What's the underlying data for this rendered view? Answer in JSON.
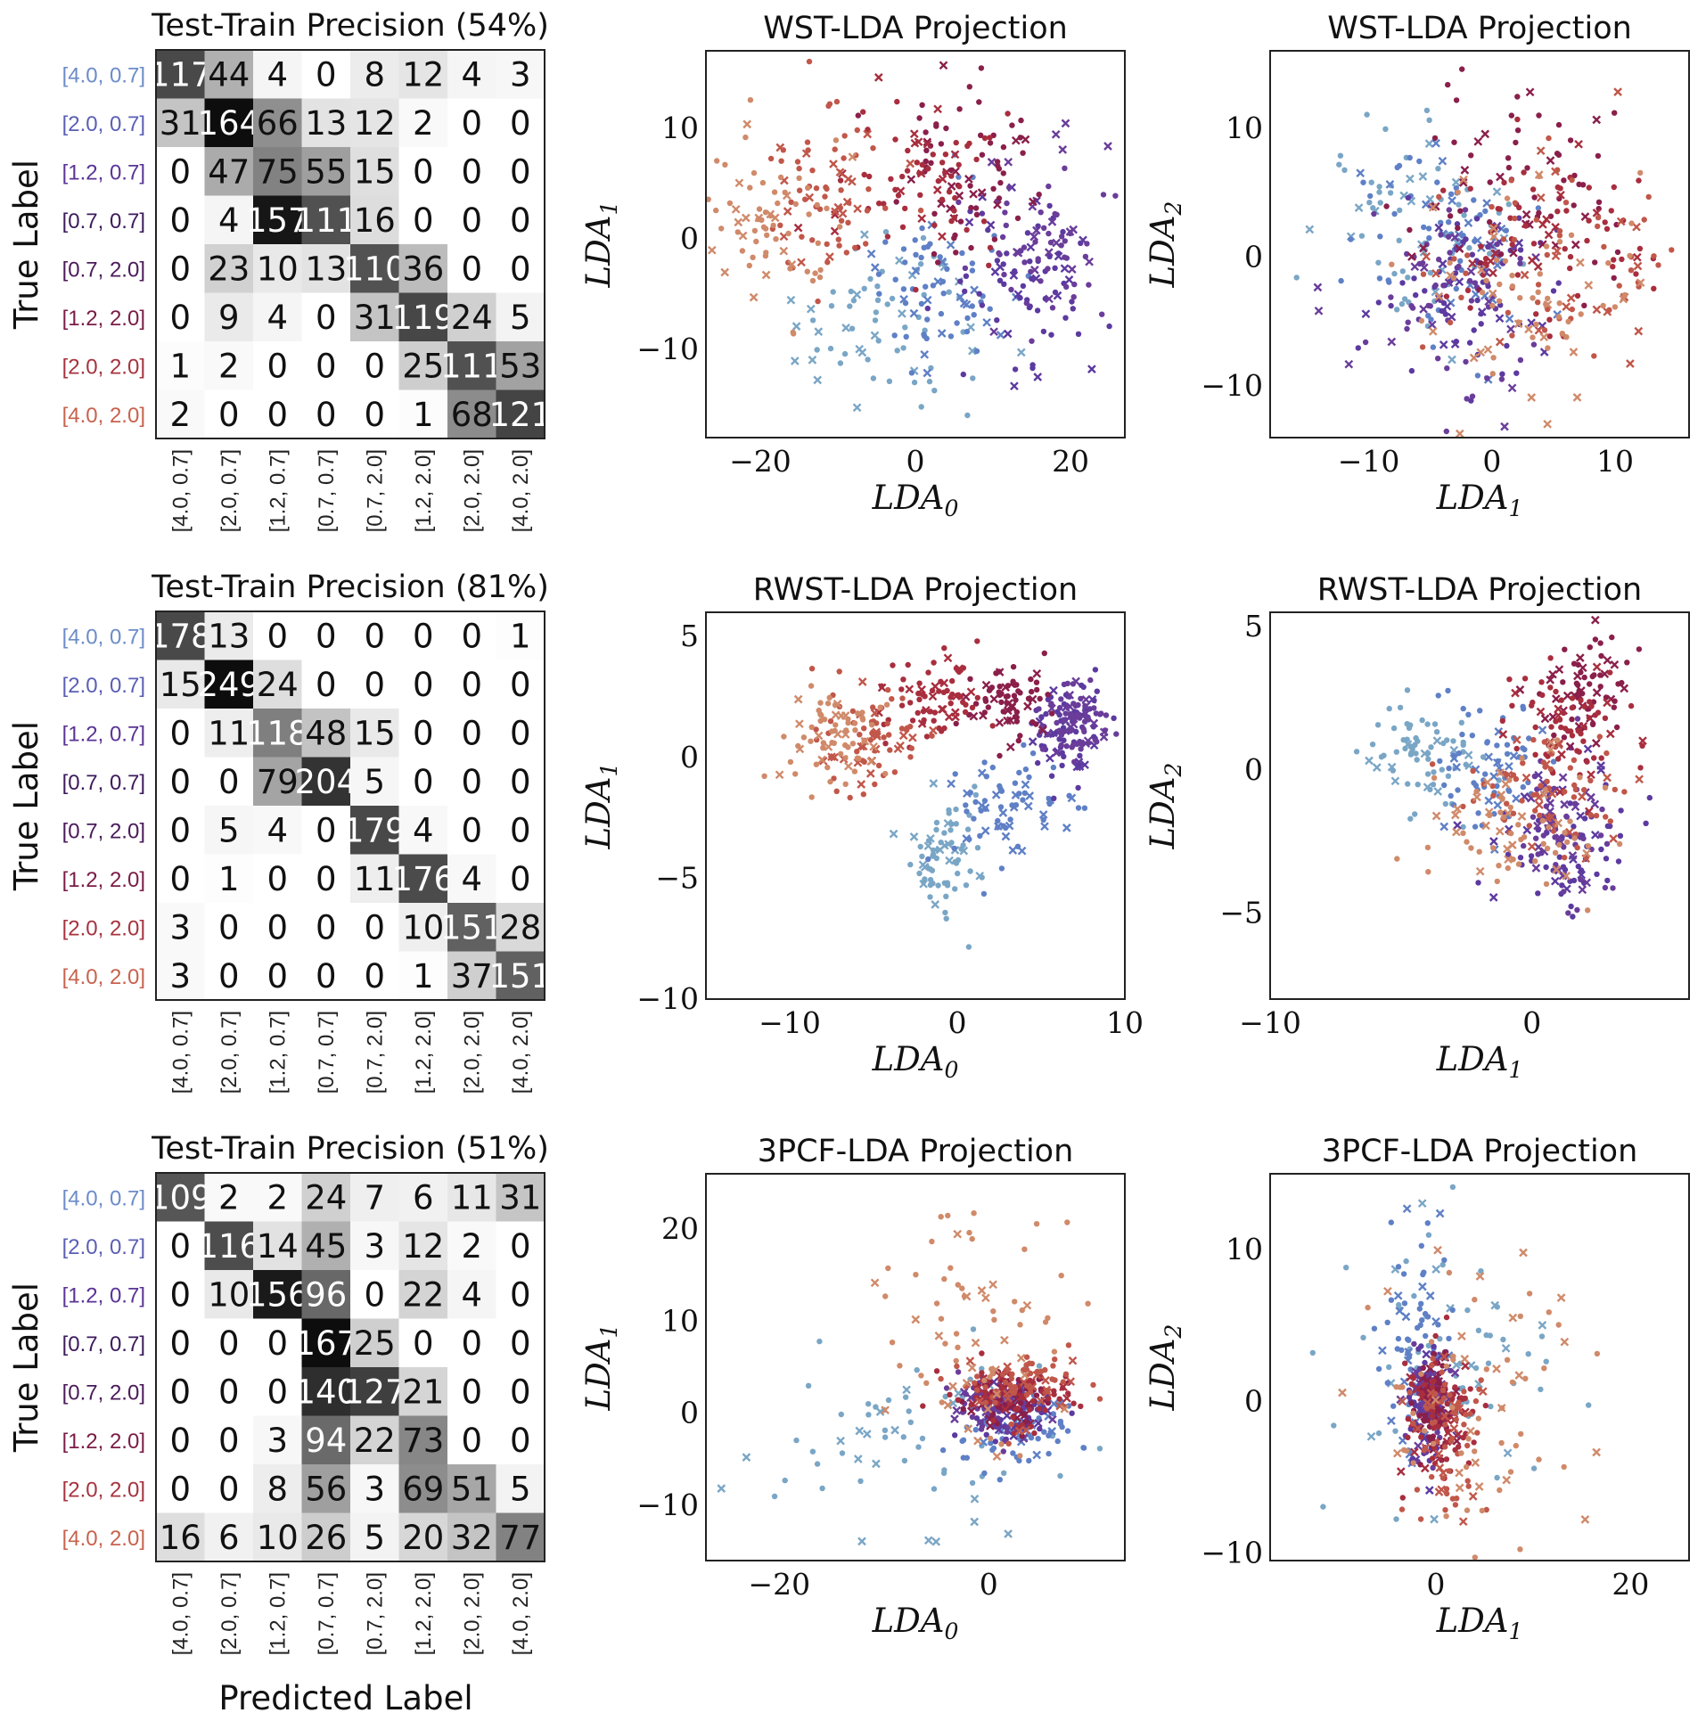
{
  "colors": {
    "[4.0, 0.7]": "#6c8cc8",
    "[2.0, 0.7]": "#5a5fb5",
    "[1.2, 0.7]": "#5a3496",
    "[0.7, 0.7]": "#3c1b5c",
    "[0.7, 2.0]": "#4a1a5a",
    "[1.2, 2.0]": "#7a1c46",
    "[2.0, 2.0]": "#a6333f",
    "[4.0, 2.0]": "#c7634e"
  },
  "scatter_colors": {
    "[4.0, 0.7]": "#7aa6c6",
    "[2.0, 0.7]": "#5f80c6",
    "[1.2, 0.7]": "#5c3aa0",
    "[0.7, 0.7]": "#6a3d9a",
    "[0.7, 2.0]": "#8a1f4a",
    "[1.2, 2.0]": "#a82e3e",
    "[2.0, 2.0]": "#c1574a",
    "[4.0, 2.0]": "#d08a6a"
  },
  "labels": {
    "true_label": "True Label",
    "predicted_label": "Predicted Label"
  },
  "chart_data": [
    {
      "type": "heatmap",
      "title": "Test-Train Precision (54%)",
      "xlabel": "",
      "ylabel": "True Label",
      "categories": [
        "[4.0, 0.7]",
        "[2.0, 0.7]",
        "[1.2, 0.7]",
        "[0.7, 0.7]",
        "[0.7, 2.0]",
        "[1.2, 2.0]",
        "[2.0, 2.0]",
        "[4.0, 2.0]"
      ],
      "matrix": [
        [
          117,
          44,
          4,
          0,
          8,
          12,
          4,
          3
        ],
        [
          31,
          164,
          66,
          13,
          12,
          2,
          0,
          0
        ],
        [
          0,
          47,
          75,
          55,
          15,
          0,
          0,
          0
        ],
        [
          0,
          4,
          157,
          111,
          16,
          0,
          0,
          0
        ],
        [
          0,
          23,
          10,
          13,
          110,
          36,
          0,
          0
        ],
        [
          0,
          9,
          4,
          0,
          31,
          119,
          24,
          5
        ],
        [
          1,
          2,
          0,
          0,
          0,
          25,
          111,
          53
        ],
        [
          2,
          0,
          0,
          0,
          0,
          1,
          68,
          121
        ]
      ]
    },
    {
      "type": "scatter",
      "title": "WST-LDA Projection",
      "xlabel": "LDA0",
      "ylabel": "LDA1",
      "xlim": [
        -27,
        27
      ],
      "ylim": [
        -18,
        17
      ],
      "xticks": [
        -20,
        0,
        20
      ],
      "xtick_labels": [
        "−20",
        "0",
        "20"
      ],
      "yticks": [
        -10,
        0,
        10
      ],
      "ytick_labels": [
        "−10",
        "0",
        "10"
      ],
      "clusters": [
        {
          "class": "[4.0, 0.7]",
          "cx": -3,
          "cy": -7,
          "sx": 6,
          "sy": 4.5
        },
        {
          "class": "[2.0, 0.7]",
          "cx": 3,
          "cy": -4,
          "sx": 5,
          "sy": 4
        },
        {
          "class": "[1.2, 0.7]",
          "cx": 14,
          "cy": -3,
          "sx": 5,
          "sy": 4
        },
        {
          "class": "[0.7, 0.7]",
          "cx": 18,
          "cy": 0,
          "sx": 4,
          "sy": 4
        },
        {
          "class": "[0.7, 2.0]",
          "cx": 7,
          "cy": 6,
          "sx": 5,
          "sy": 3.5
        },
        {
          "class": "[1.2, 2.0]",
          "cx": 0,
          "cy": 5,
          "sx": 6,
          "sy": 3.5
        },
        {
          "class": "[2.0, 2.0]",
          "cx": -12,
          "cy": 4,
          "sx": 4,
          "sy": 4
        },
        {
          "class": "[4.0, 2.0]",
          "cx": -19,
          "cy": 1,
          "sx": 3.5,
          "sy": 4
        }
      ]
    },
    {
      "type": "scatter",
      "title": "WST-LDA Projection",
      "xlabel": "LDA1",
      "ylabel": "LDA2",
      "xlim": [
        -18,
        16
      ],
      "ylim": [
        -14,
        16
      ],
      "xticks": [
        -10,
        0,
        10
      ],
      "xtick_labels": [
        "−10",
        "0",
        "10"
      ],
      "yticks": [
        -10,
        0,
        10
      ],
      "ytick_labels": [
        "−10",
        "0",
        "10"
      ],
      "clusters": [
        {
          "class": "[4.0, 0.7]",
          "cx": -6,
          "cy": 3,
          "sx": 4,
          "sy": 4
        },
        {
          "class": "[2.0, 0.7]",
          "cx": -4,
          "cy": 1,
          "sx": 4,
          "sy": 4
        },
        {
          "class": "[1.2, 0.7]",
          "cx": -2,
          "cy": -2,
          "sx": 4,
          "sy": 4
        },
        {
          "class": "[0.7, 0.7]",
          "cx": -3,
          "cy": -3,
          "sx": 4,
          "sy": 4
        },
        {
          "class": "[0.7, 2.0]",
          "cx": 2,
          "cy": 6,
          "sx": 5,
          "sy": 4
        },
        {
          "class": "[1.2, 2.0]",
          "cx": 5,
          "cy": 2,
          "sx": 5,
          "sy": 4
        },
        {
          "class": "[2.0, 2.0]",
          "cx": 6,
          "cy": 0,
          "sx": 5,
          "sy": 4
        },
        {
          "class": "[4.0, 2.0]",
          "cx": 3,
          "cy": -3,
          "sx": 5,
          "sy": 4
        }
      ]
    },
    {
      "type": "heatmap",
      "title": "Test-Train Precision (81%)",
      "xlabel": "",
      "ylabel": "True Label",
      "categories": [
        "[4.0, 0.7]",
        "[2.0, 0.7]",
        "[1.2, 0.7]",
        "[0.7, 0.7]",
        "[0.7, 2.0]",
        "[1.2, 2.0]",
        "[2.0, 2.0]",
        "[4.0, 2.0]"
      ],
      "matrix": [
        [
          178,
          13,
          0,
          0,
          0,
          0,
          0,
          1
        ],
        [
          15,
          249,
          24,
          0,
          0,
          0,
          0,
          0
        ],
        [
          0,
          11,
          118,
          48,
          15,
          0,
          0,
          0
        ],
        [
          0,
          0,
          79,
          204,
          5,
          0,
          0,
          0
        ],
        [
          0,
          5,
          4,
          0,
          179,
          4,
          0,
          0
        ],
        [
          0,
          1,
          0,
          0,
          11,
          176,
          4,
          0
        ],
        [
          3,
          0,
          0,
          0,
          0,
          10,
          151,
          28
        ],
        [
          3,
          0,
          0,
          0,
          0,
          1,
          37,
          151
        ]
      ]
    },
    {
      "type": "scatter",
      "title": "RWST-LDA Projection",
      "xlabel": "LDA0",
      "ylabel": "LDA1",
      "xlim": [
        -15,
        10
      ],
      "ylim": [
        -10,
        6
      ],
      "xticks": [
        -10,
        0,
        10
      ],
      "xtick_labels": [
        "−10",
        "0",
        "10"
      ],
      "yticks": [
        -10,
        -5,
        0,
        5
      ],
      "ytick_labels": [
        "−10",
        "−5",
        "0",
        "5"
      ],
      "clusters": [
        {
          "class": "[4.0, 0.7]",
          "cx": -1,
          "cy": -4.5,
          "sx": 1.2,
          "sy": 1.3
        },
        {
          "class": "[2.0, 0.7]",
          "cx": 3,
          "cy": -2,
          "sx": 1.6,
          "sy": 1.2
        },
        {
          "class": "[1.2, 0.7]",
          "cx": 6.5,
          "cy": 1.2,
          "sx": 1.2,
          "sy": 1.0
        },
        {
          "class": "[0.7, 0.7]",
          "cx": 7,
          "cy": 1.5,
          "sx": 1.0,
          "sy": 0.8
        },
        {
          "class": "[0.7, 2.0]",
          "cx": 3,
          "cy": 2.3,
          "sx": 1.2,
          "sy": 0.8
        },
        {
          "class": "[1.2, 2.0]",
          "cx": -1.5,
          "cy": 2.3,
          "sx": 1.5,
          "sy": 0.9
        },
        {
          "class": "[2.0, 2.0]",
          "cx": -5,
          "cy": 0.8,
          "sx": 1.8,
          "sy": 1.0
        },
        {
          "class": "[4.0, 2.0]",
          "cx": -7.5,
          "cy": 1.0,
          "sx": 1.8,
          "sy": 1.0
        }
      ]
    },
    {
      "type": "scatter",
      "title": "RWST-LDA Projection",
      "xlabel": "LDA1",
      "ylabel": "LDA2",
      "xlim": [
        -10,
        6
      ],
      "ylim": [
        -8,
        5.5
      ],
      "xticks": [
        -10,
        0
      ],
      "xtick_labels": [
        "−10",
        "0"
      ],
      "yticks": [
        -5,
        0,
        5
      ],
      "ytick_labels": [
        "−5",
        "0",
        "5"
      ],
      "clusters": [
        {
          "class": "[4.0, 0.7]",
          "cx": -4,
          "cy": 0.6,
          "sx": 1.2,
          "sy": 1.0
        },
        {
          "class": "[2.0, 0.7]",
          "cx": -1.5,
          "cy": 0,
          "sx": 1.2,
          "sy": 1.3
        },
        {
          "class": "[1.2, 0.7]",
          "cx": 1,
          "cy": -2.5,
          "sx": 1.2,
          "sy": 1.2
        },
        {
          "class": "[0.7, 0.7]",
          "cx": 1,
          "cy": -2,
          "sx": 1.0,
          "sy": 1.2
        },
        {
          "class": "[0.7, 2.0]",
          "cx": 2,
          "cy": 2.5,
          "sx": 1.0,
          "sy": 0.9
        },
        {
          "class": "[1.2, 2.0]",
          "cx": 1.5,
          "cy": 1.5,
          "sx": 1.3,
          "sy": 1.2
        },
        {
          "class": "[2.0, 2.0]",
          "cx": 0.5,
          "cy": -1,
          "sx": 1.5,
          "sy": 1.3
        },
        {
          "class": "[4.0, 2.0]",
          "cx": -0.5,
          "cy": -2,
          "sx": 1.5,
          "sy": 1.3
        }
      ]
    },
    {
      "type": "heatmap",
      "title": "Test-Train Precision (51%)",
      "xlabel": "Predicted Label",
      "ylabel": "True Label",
      "categories": [
        "[4.0, 0.7]",
        "[2.0, 0.7]",
        "[1.2, 0.7]",
        "[0.7, 0.7]",
        "[0.7, 2.0]",
        "[1.2, 2.0]",
        "[2.0, 2.0]",
        "[4.0, 2.0]"
      ],
      "matrix": [
        [
          109,
          2,
          2,
          24,
          7,
          6,
          11,
          31
        ],
        [
          0,
          116,
          14,
          45,
          3,
          12,
          2,
          0
        ],
        [
          0,
          10,
          156,
          96,
          0,
          22,
          4,
          0
        ],
        [
          0,
          0,
          0,
          167,
          25,
          0,
          0,
          0
        ],
        [
          0,
          0,
          0,
          140,
          127,
          21,
          0,
          0
        ],
        [
          0,
          0,
          3,
          94,
          22,
          73,
          0,
          0
        ],
        [
          0,
          0,
          8,
          56,
          3,
          69,
          51,
          5
        ],
        [
          16,
          6,
          10,
          26,
          5,
          20,
          32,
          77
        ]
      ]
    },
    {
      "type": "scatter",
      "title": "3PCF-LDA Projection",
      "xlabel": "LDA0",
      "ylabel": "LDA1",
      "xlim": [
        -27,
        13
      ],
      "ylim": [
        -16,
        26
      ],
      "xticks": [
        -20,
        0
      ],
      "xtick_labels": [
        "−20",
        "0"
      ],
      "yticks": [
        -10,
        0,
        10,
        20
      ],
      "ytick_labels": [
        "−10",
        "0",
        "10",
        "20"
      ],
      "clusters": [
        {
          "class": "[4.0, 0.7]",
          "cx": -8,
          "cy": -3,
          "sx": 7,
          "sy": 5
        },
        {
          "class": "[2.0, 0.7]",
          "cx": 3,
          "cy": -2,
          "sx": 3,
          "sy": 2
        },
        {
          "class": "[1.2, 0.7]",
          "cx": 2,
          "cy": 0,
          "sx": 2,
          "sy": 1.5
        },
        {
          "class": "[0.7, 0.7]",
          "cx": 1,
          "cy": 1,
          "sx": 2,
          "sy": 1.5
        },
        {
          "class": "[0.7, 2.0]",
          "cx": 2,
          "cy": 1.5,
          "sx": 2,
          "sy": 1.5
        },
        {
          "class": "[1.2, 2.0]",
          "cx": 2,
          "cy": 2,
          "sx": 3,
          "sy": 1.5
        },
        {
          "class": "[2.0, 2.0]",
          "cx": 3,
          "cy": 3,
          "sx": 3,
          "sy": 2
        },
        {
          "class": "[4.0, 2.0]",
          "cx": -1,
          "cy": 10,
          "sx": 4,
          "sy": 8
        }
      ]
    },
    {
      "type": "scatter",
      "title": "3PCF-LDA Projection",
      "xlabel": "LDA1",
      "ylabel": "LDA2",
      "xlim": [
        -17,
        26
      ],
      "ylim": [
        -10.5,
        15
      ],
      "xticks": [
        0,
        20
      ],
      "xtick_labels": [
        "0",
        "20"
      ],
      "yticks": [
        -10,
        0,
        10
      ],
      "ytick_labels": [
        "−10",
        "0",
        "10"
      ],
      "clusters": [
        {
          "class": "[4.0, 0.7]",
          "cx": 2,
          "cy": 2,
          "sx": 6,
          "sy": 5
        },
        {
          "class": "[2.0, 0.7]",
          "cx": -2,
          "cy": 4,
          "sx": 2,
          "sy": 4
        },
        {
          "class": "[1.2, 0.7]",
          "cx": -1,
          "cy": 0,
          "sx": 1,
          "sy": 2
        },
        {
          "class": "[0.7, 0.7]",
          "cx": -0.5,
          "cy": 0,
          "sx": 1,
          "sy": 1.5
        },
        {
          "class": "[0.7, 2.0]",
          "cx": 0,
          "cy": -0.5,
          "sx": 1,
          "sy": 1.5
        },
        {
          "class": "[1.2, 2.0]",
          "cx": 0,
          "cy": -1,
          "sx": 2,
          "sy": 2
        },
        {
          "class": "[2.0, 2.0]",
          "cx": 1,
          "cy": -2,
          "sx": 2,
          "sy": 3
        },
        {
          "class": "[4.0, 2.0]",
          "cx": 4,
          "cy": 0,
          "sx": 6,
          "sy": 5
        }
      ]
    }
  ]
}
